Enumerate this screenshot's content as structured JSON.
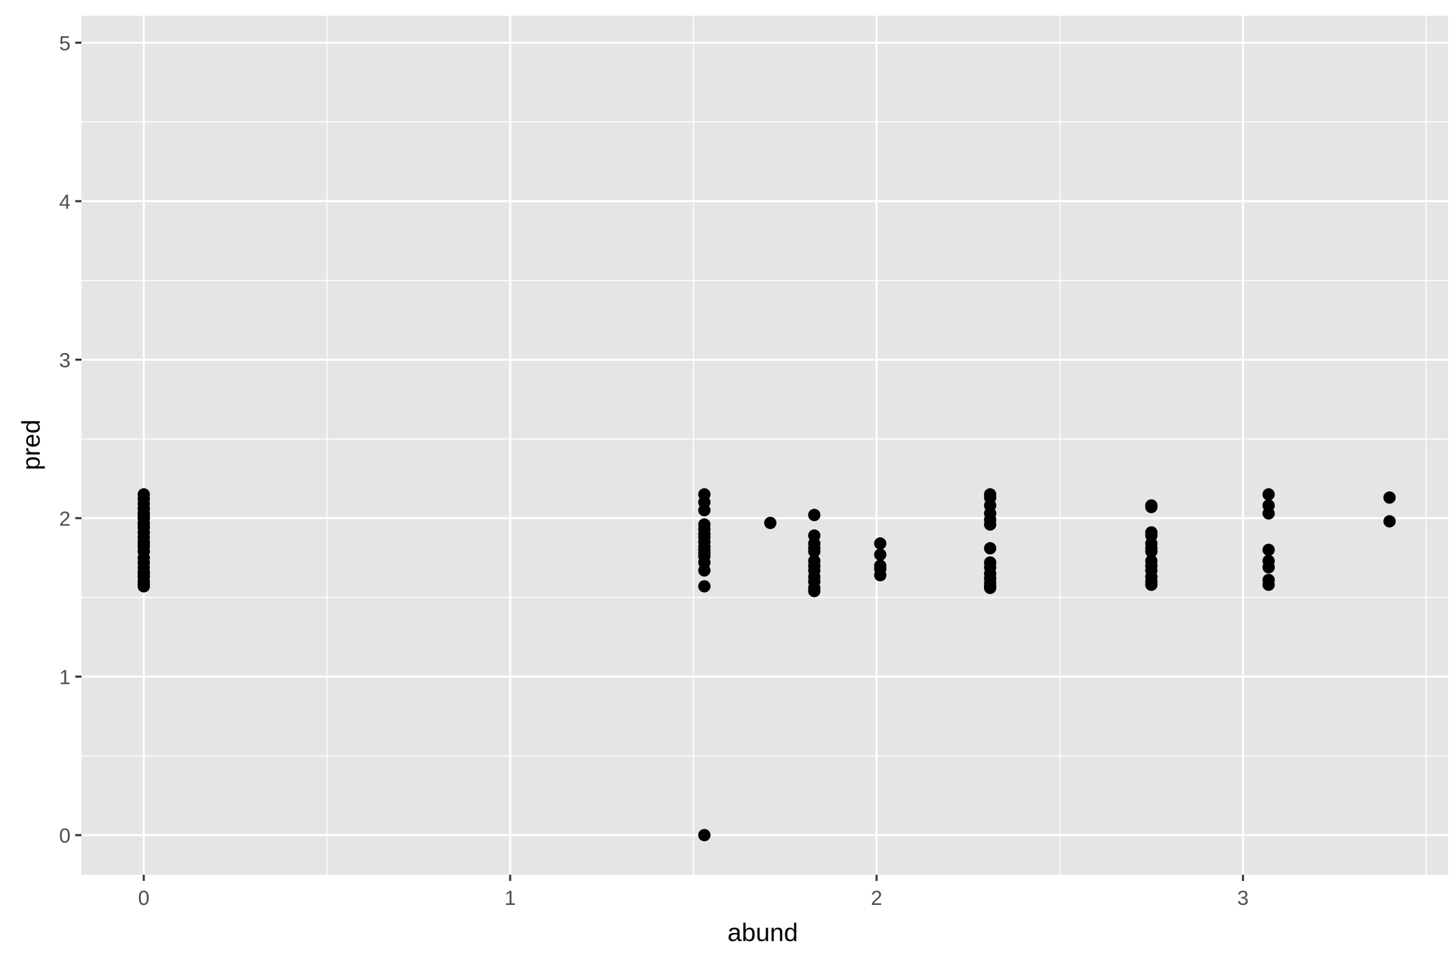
{
  "chart_data": {
    "type": "scatter",
    "title": "",
    "xlabel": "abund",
    "ylabel": "pred",
    "xlim": [
      -0.17,
      3.56
    ],
    "ylim": [
      -0.25,
      5.17
    ],
    "x_ticks": [
      0,
      1,
      2,
      3
    ],
    "y_ticks": [
      0,
      1,
      2,
      3,
      4,
      5
    ],
    "x_tick_labels": [
      "0",
      "1",
      "2",
      "3"
    ],
    "y_tick_labels": [
      "0",
      "1",
      "2",
      "3",
      "4",
      "5"
    ],
    "grid": true,
    "legend": "none",
    "colors": {
      "panel": "#e5e5e5",
      "grid": "#ffffff",
      "point": "#000000",
      "tick_label": "#4d4d4d"
    },
    "series": [
      {
        "x": [
          0,
          0,
          0,
          0,
          0,
          0,
          0,
          0,
          0,
          0,
          0,
          0,
          0,
          0,
          0,
          0,
          0,
          0,
          0,
          0,
          0,
          0,
          0,
          0,
          0,
          1.53,
          1.53,
          1.53,
          1.53,
          1.53,
          1.53,
          1.53,
          1.53,
          1.53,
          1.53,
          1.53,
          1.53,
          1.53,
          1.53,
          1.53,
          1.53,
          1.71,
          1.83,
          1.83,
          1.83,
          1.83,
          1.83,
          1.83,
          1.83,
          1.83,
          1.83,
          1.83,
          1.83,
          1.83,
          2.01,
          2.01,
          2.01,
          2.01,
          2.01,
          2.31,
          2.31,
          2.31,
          2.31,
          2.31,
          2.31,
          2.31,
          2.31,
          2.31,
          2.31,
          2.31,
          2.31,
          2.31,
          2.31,
          2.75,
          2.75,
          2.75,
          2.75,
          2.75,
          2.75,
          2.75,
          2.75,
          2.75,
          2.75,
          2.75,
          2.75,
          2.75,
          3.07,
          3.07,
          3.07,
          3.07,
          3.07,
          3.07,
          3.07,
          3.07,
          3.4,
          3.4
        ],
        "y": [
          1.57,
          1.6,
          1.63,
          1.66,
          1.69,
          1.72,
          1.75,
          1.79,
          1.82,
          1.85,
          1.88,
          1.91,
          1.94,
          1.97,
          2.0,
          2.03,
          2.06,
          2.09,
          2.12,
          2.15,
          1.58,
          1.65,
          1.84,
          1.95,
          2.01,
          2.15,
          2.1,
          2.05,
          1.96,
          1.93,
          1.9,
          1.88,
          1.85,
          1.82,
          1.8,
          1.78,
          1.76,
          1.72,
          1.67,
          1.57,
          0.0,
          1.97,
          2.02,
          1.89,
          1.84,
          1.81,
          1.79,
          1.73,
          1.7,
          1.67,
          1.63,
          1.6,
          1.56,
          1.54,
          1.84,
          1.77,
          1.7,
          1.68,
          1.64,
          2.15,
          2.13,
          2.08,
          2.03,
          1.99,
          1.96,
          1.81,
          1.72,
          1.69,
          1.65,
          1.62,
          1.59,
          1.57,
          1.56,
          2.08,
          2.07,
          1.91,
          1.89,
          1.84,
          1.81,
          1.79,
          1.73,
          1.7,
          1.67,
          1.63,
          1.6,
          1.58,
          2.15,
          2.08,
          2.03,
          1.8,
          1.73,
          1.69,
          1.61,
          1.58,
          2.13,
          1.98
        ]
      }
    ]
  }
}
